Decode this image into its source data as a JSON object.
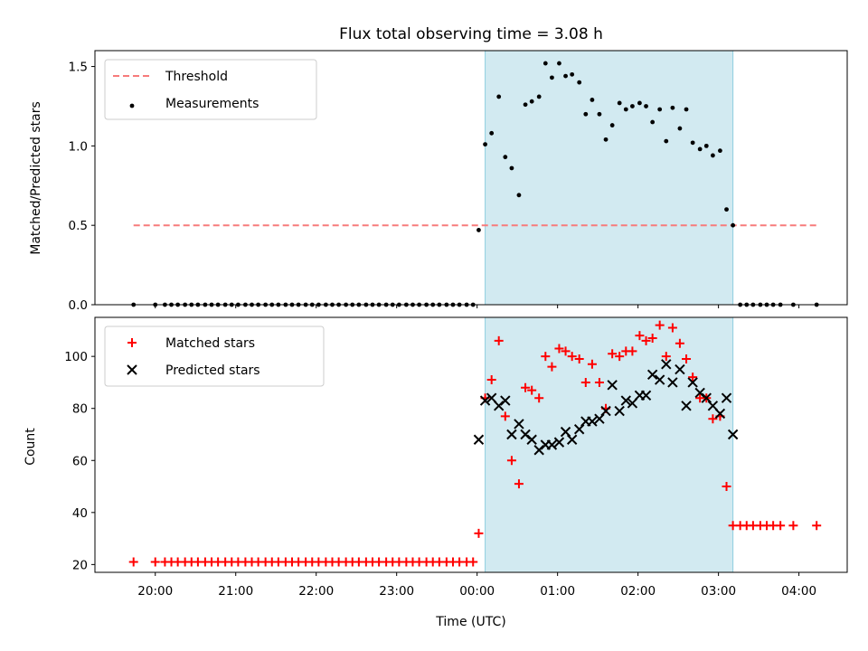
{
  "figure": {
    "title": "Flux total observing time = 3.08 h",
    "xlabel": "Time (UTC)",
    "x_ticks": [
      "20:00",
      "21:00",
      "22:00",
      "23:00",
      "00:00",
      "01:00",
      "02:00",
      "03:00",
      "04:00"
    ]
  },
  "colors": {
    "threshold": "#f77b7b",
    "measurements": "#000000",
    "matched": "#ff0000",
    "predicted": "#000000",
    "shade_fill": "#add8e6",
    "shade_edge": "#8ecfdf"
  },
  "chart_data": [
    {
      "type": "scatter",
      "panel": "top",
      "ylabel": "Matched/Predicted stars",
      "x_unit": "hours from 00:00 UTC",
      "xlim": [
        -4.75,
        4.6
      ],
      "ylim": [
        0,
        1.6
      ],
      "y_ticks": [
        "0.0",
        "0.5",
        "1.0",
        "1.5"
      ],
      "legend": {
        "position": "upper left",
        "entries": [
          "Threshold",
          "Measurements"
        ]
      },
      "observing_window": [
        0.1,
        3.18
      ],
      "threshold": {
        "name": "Threshold",
        "value": 0.5,
        "x_range": [
          -4.27,
          4.22
        ]
      },
      "series": [
        {
          "name": "Measurements",
          "x": [
            -4.27,
            -4.0,
            -3.88,
            -3.8,
            -3.72,
            -3.63,
            -3.55,
            -3.47,
            -3.38,
            -3.3,
            -3.22,
            -3.13,
            -3.05,
            -2.97,
            -2.88,
            -2.8,
            -2.72,
            -2.63,
            -2.55,
            -2.47,
            -2.38,
            -2.3,
            -2.22,
            -2.13,
            -2.05,
            -1.97,
            -1.88,
            -1.8,
            -1.72,
            -1.63,
            -1.55,
            -1.47,
            -1.38,
            -1.3,
            -1.22,
            -1.13,
            -1.05,
            -0.97,
            -0.88,
            -0.8,
            -0.72,
            -0.63,
            -0.55,
            -0.47,
            -0.38,
            -0.3,
            -0.22,
            -0.13,
            -0.05,
            0.02,
            0.1,
            0.18,
            0.27,
            0.35,
            0.43,
            0.52,
            0.6,
            0.68,
            0.77,
            0.85,
            0.93,
            1.02,
            1.1,
            1.18,
            1.27,
            1.35,
            1.43,
            1.52,
            1.6,
            1.68,
            1.77,
            1.85,
            1.93,
            2.02,
            2.1,
            2.18,
            2.27,
            2.35,
            2.43,
            2.52,
            2.6,
            2.68,
            2.77,
            2.85,
            2.93,
            3.02,
            3.1,
            3.18,
            3.27,
            3.35,
            3.43,
            3.52,
            3.6,
            3.68,
            3.77,
            3.93,
            4.22
          ],
          "y": [
            0,
            0,
            0,
            0,
            0,
            0,
            0,
            0,
            0,
            0,
            0,
            0,
            0,
            0,
            0,
            0,
            0,
            0,
            0,
            0,
            0,
            0,
            0,
            0,
            0,
            0,
            0,
            0,
            0,
            0,
            0,
            0,
            0,
            0,
            0,
            0,
            0,
            0,
            0,
            0,
            0,
            0,
            0,
            0,
            0,
            0,
            0,
            0,
            0,
            0.47,
            1.01,
            1.08,
            1.31,
            0.93,
            0.86,
            0.69,
            1.26,
            1.28,
            1.31,
            1.52,
            1.43,
            1.52,
            1.44,
            1.45,
            1.4,
            1.2,
            1.29,
            1.2,
            1.04,
            1.13,
            1.27,
            1.23,
            1.25,
            1.27,
            1.25,
            1.15,
            1.23,
            1.03,
            1.24,
            1.11,
            1.23,
            1.02,
            0.98,
            1.0,
            0.94,
            0.97,
            0.6,
            0.5,
            0,
            0,
            0,
            0,
            0,
            0,
            0,
            0,
            0
          ]
        }
      ]
    },
    {
      "type": "scatter",
      "panel": "bottom",
      "ylabel": "Count",
      "x_unit": "hours from 00:00 UTC",
      "xlim": [
        -4.75,
        4.6
      ],
      "ylim": [
        17,
        115
      ],
      "y_ticks": [
        "20",
        "40",
        "60",
        "80",
        "100"
      ],
      "legend": {
        "position": "upper left",
        "entries": [
          "Matched stars",
          "Predicted stars"
        ]
      },
      "observing_window": [
        0.1,
        3.18
      ],
      "series": [
        {
          "name": "Matched stars",
          "marker": "plus",
          "x": [
            -4.27,
            -4.0,
            -3.88,
            -3.8,
            -3.72,
            -3.63,
            -3.55,
            -3.47,
            -3.38,
            -3.3,
            -3.22,
            -3.13,
            -3.05,
            -2.97,
            -2.88,
            -2.8,
            -2.72,
            -2.63,
            -2.55,
            -2.47,
            -2.38,
            -2.3,
            -2.22,
            -2.13,
            -2.05,
            -1.97,
            -1.88,
            -1.8,
            -1.72,
            -1.63,
            -1.55,
            -1.47,
            -1.38,
            -1.3,
            -1.22,
            -1.13,
            -1.05,
            -0.97,
            -0.88,
            -0.8,
            -0.72,
            -0.63,
            -0.55,
            -0.47,
            -0.38,
            -0.3,
            -0.22,
            -0.13,
            -0.05,
            0.02,
            0.1,
            0.18,
            0.27,
            0.35,
            0.43,
            0.52,
            0.6,
            0.68,
            0.77,
            0.85,
            0.93,
            1.02,
            1.1,
            1.18,
            1.27,
            1.35,
            1.43,
            1.52,
            1.6,
            1.68,
            1.77,
            1.85,
            1.93,
            2.02,
            2.1,
            2.18,
            2.27,
            2.35,
            2.43,
            2.52,
            2.6,
            2.68,
            2.77,
            2.85,
            2.93,
            3.02,
            3.1,
            3.18,
            3.27,
            3.35,
            3.43,
            3.52,
            3.6,
            3.68,
            3.77,
            3.93,
            4.22
          ],
          "y": [
            21,
            21,
            21,
            21,
            21,
            21,
            21,
            21,
            21,
            21,
            21,
            21,
            21,
            21,
            21,
            21,
            21,
            21,
            21,
            21,
            21,
            21,
            21,
            21,
            21,
            21,
            21,
            21,
            21,
            21,
            21,
            21,
            21,
            21,
            21,
            21,
            21,
            21,
            21,
            21,
            21,
            21,
            21,
            21,
            21,
            21,
            21,
            21,
            21,
            32,
            84,
            91,
            106,
            77,
            60,
            51,
            88,
            87,
            84,
            100,
            96,
            103,
            102,
            100,
            99,
            90,
            97,
            90,
            80,
            101,
            100,
            102,
            102,
            108,
            106,
            107,
            112,
            100,
            111,
            105,
            99,
            92,
            84,
            84,
            76,
            77,
            50,
            35,
            35,
            35,
            35,
            35,
            35,
            35,
            35,
            35,
            35
          ]
        },
        {
          "name": "Predicted stars",
          "marker": "x",
          "x": [
            0.02,
            0.1,
            0.18,
            0.27,
            0.35,
            0.43,
            0.52,
            0.6,
            0.68,
            0.77,
            0.85,
            0.93,
            1.02,
            1.1,
            1.18,
            1.27,
            1.35,
            1.43,
            1.52,
            1.6,
            1.68,
            1.77,
            1.85,
            1.93,
            2.02,
            2.1,
            2.18,
            2.27,
            2.35,
            2.43,
            2.52,
            2.6,
            2.68,
            2.77,
            2.85,
            2.93,
            3.02,
            3.1,
            3.18
          ],
          "y": [
            68,
            83,
            84,
            81,
            83,
            70,
            74,
            70,
            68,
            64,
            66,
            66,
            67,
            71,
            68,
            72,
            75,
            75,
            76,
            79,
            89,
            79,
            83,
            82,
            85,
            85,
            93,
            91,
            97,
            90,
            95,
            81,
            90,
            86,
            84,
            81,
            78,
            84,
            70
          ]
        }
      ]
    }
  ]
}
